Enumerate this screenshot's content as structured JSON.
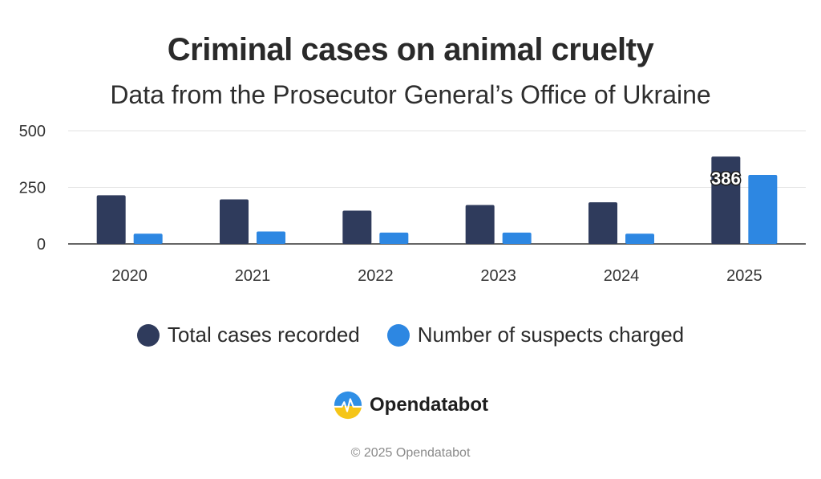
{
  "chart_data": {
    "type": "bar",
    "title": "Criminal cases on animal cruelty",
    "subtitle": "Data from the Prosecutor General’s Office of Ukraine",
    "categories": [
      "2020",
      "2021",
      "2022",
      "2023",
      "2024",
      "2025"
    ],
    "series": [
      {
        "name": "Total cases recorded",
        "values": [
          215,
          197,
          147,
          172,
          184,
          386
        ],
        "color": "#2f3b5c"
      },
      {
        "name": "Number of suspects charged",
        "values": [
          45,
          55,
          50,
          50,
          45,
          305
        ],
        "color": "#2d87e2"
      }
    ],
    "ylim": [
      0,
      500
    ],
    "yticks": [
      "0",
      "250",
      "500"
    ],
    "data_labels": [
      {
        "series": 0,
        "category": "2025",
        "text": "386"
      }
    ],
    "grid": true,
    "legend": "bottom"
  },
  "brand": {
    "name": "Opendatabot",
    "logo_icon": "opendatabot-logo-icon"
  },
  "footer": {
    "copyright": "© 2025 Opendatabot"
  }
}
